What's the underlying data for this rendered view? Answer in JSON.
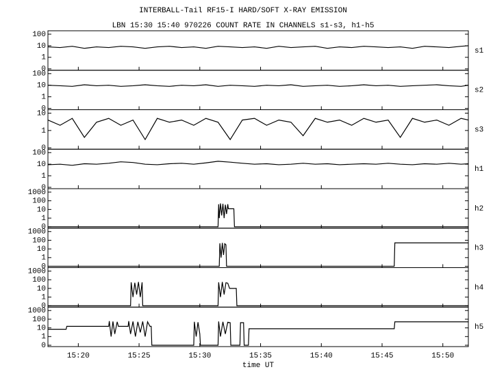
{
  "title": "INTERBALL-Tail RF15-I HARD/SOFT X-RAY EMISSION",
  "subtitle": "LBN 15:30 15:40 970226  COUNT RATE IN CHANNELS s1-s3, h1-h5",
  "chart_data": [
    {
      "type": "line",
      "label": "s1",
      "yscale": "log",
      "ylim": [
        0,
        100
      ],
      "yticks": [
        0,
        1,
        10,
        100
      ],
      "xlim": [
        17.5,
        52.1
      ],
      "color": "#000000",
      "x": [
        17.5,
        18.5,
        19.5,
        20.5,
        21.5,
        22.5,
        23.5,
        24.5,
        25.5,
        26.5,
        27.5,
        28.5,
        29.5,
        30.5,
        31.5,
        32.5,
        33.5,
        34.5,
        35.5,
        36.5,
        37.5,
        38.5,
        39.5,
        40.5,
        41.5,
        42.5,
        43.5,
        44.5,
        45.5,
        46.5,
        47.5,
        48.5,
        49.5,
        50.5,
        51.5,
        52.1
      ],
      "values": [
        8,
        7,
        9,
        6,
        8,
        7,
        9,
        8,
        6,
        8,
        9,
        7,
        8,
        6,
        9,
        8,
        7,
        8,
        6,
        9,
        7,
        8,
        9,
        6,
        8,
        7,
        9,
        8,
        7,
        8,
        6,
        9,
        8,
        7,
        9,
        10
      ]
    },
    {
      "type": "line",
      "label": "s2",
      "yscale": "log",
      "ylim": [
        0,
        100
      ],
      "yticks": [
        0,
        1,
        10,
        100
      ],
      "xlim": [
        17.5,
        52.1
      ],
      "color": "#000000",
      "x": [
        17.5,
        18.5,
        19.5,
        20.5,
        21.5,
        22.5,
        23.5,
        24.5,
        25.5,
        26.5,
        27.5,
        28.5,
        29.5,
        30.5,
        31.5,
        32.5,
        33.5,
        34.5,
        35.5,
        36.5,
        37.5,
        38.5,
        39.5,
        40.5,
        41.5,
        42.5,
        43.5,
        44.5,
        45.5,
        46.5,
        47.5,
        48.5,
        49.5,
        50.5,
        51.5,
        52.1
      ],
      "values": [
        10,
        9,
        8,
        11,
        9,
        10,
        8,
        9,
        11,
        9,
        8,
        10,
        9,
        11,
        8,
        10,
        9,
        8,
        10,
        9,
        11,
        8,
        9,
        10,
        8,
        9,
        11,
        9,
        10,
        8,
        9,
        10,
        11,
        9,
        8,
        10
      ]
    },
    {
      "type": "line",
      "label": "s3",
      "yscale": "log",
      "ylim": [
        0,
        10
      ],
      "yticks": [
        0,
        1,
        10
      ],
      "xlim": [
        17.5,
        52.1
      ],
      "color": "#000000",
      "x": [
        17.5,
        18.5,
        19.5,
        20.5,
        21.5,
        22.5,
        23.5,
        24.5,
        25.5,
        26.5,
        27.5,
        28.5,
        29.5,
        30.5,
        31.5,
        32.5,
        33.5,
        34.5,
        35.5,
        36.5,
        37.5,
        38.5,
        39.5,
        40.5,
        41.5,
        42.5,
        43.5,
        44.5,
        45.5,
        46.5,
        47.5,
        48.5,
        49.5,
        50.5,
        51.5,
        52.1
      ],
      "values": [
        4,
        2,
        5,
        0.4,
        3,
        5,
        2,
        4,
        0.3,
        5,
        3,
        4,
        2,
        5,
        3,
        0.3,
        4,
        5,
        2,
        4,
        3,
        0.5,
        5,
        3,
        4,
        2,
        5,
        3,
        4,
        0.4,
        5,
        3,
        4,
        2,
        5,
        4
      ]
    },
    {
      "type": "line",
      "label": "h1",
      "yscale": "log",
      "ylim": [
        0,
        100
      ],
      "yticks": [
        0,
        1,
        10,
        100
      ],
      "xlim": [
        17.5,
        52.1
      ],
      "color": "#000000",
      "x": [
        17.5,
        18.5,
        19.5,
        20.5,
        21.5,
        22.5,
        23.5,
        24.5,
        25.5,
        26.5,
        27.5,
        28.5,
        29.5,
        30.5,
        31.5,
        32.5,
        33.5,
        34.5,
        35.5,
        36.5,
        37.5,
        38.5,
        39.5,
        40.5,
        41.5,
        42.5,
        43.5,
        44.5,
        45.5,
        46.5,
        47.5,
        48.5,
        49.5,
        50.5,
        51.5,
        52.1
      ],
      "values": [
        9,
        10,
        8,
        11,
        10,
        12,
        16,
        14,
        10,
        9,
        11,
        12,
        10,
        13,
        18,
        15,
        12,
        10,
        11,
        9,
        10,
        12,
        10,
        11,
        9,
        10,
        11,
        10,
        12,
        10,
        9,
        11,
        10,
        12,
        10,
        11
      ]
    },
    {
      "type": "line",
      "label": "h2",
      "yscale": "log",
      "ylim": [
        0,
        1000
      ],
      "yticks": [
        0,
        1,
        10,
        100,
        1000
      ],
      "xlim": [
        17.5,
        52.1
      ],
      "color": "#000000",
      "x": [
        17.5,
        31.5,
        31.55,
        31.6,
        31.7,
        31.8,
        31.9,
        32.0,
        32.1,
        32.2,
        32.3,
        32.35,
        32.8,
        32.85,
        52.1
      ],
      "values": [
        0,
        0,
        40,
        1,
        50,
        2,
        45,
        1,
        35,
        3,
        40,
        12,
        12,
        0,
        0
      ]
    },
    {
      "type": "line",
      "label": "h3",
      "yscale": "log",
      "ylim": [
        0,
        1000
      ],
      "yticks": [
        0,
        1,
        10,
        100,
        1000
      ],
      "xlim": [
        17.5,
        52.1
      ],
      "color": "#000000",
      "x": [
        17.5,
        31.6,
        31.65,
        31.75,
        31.85,
        31.95,
        32.05,
        32.15,
        32.2,
        46,
        46.05,
        52.1
      ],
      "values": [
        0,
        0,
        45,
        1,
        50,
        2,
        40,
        30,
        0,
        0,
        50,
        50
      ]
    },
    {
      "type": "line",
      "label": "h4",
      "yscale": "log",
      "ylim": [
        0,
        1000
      ],
      "yticks": [
        0,
        1,
        10,
        100,
        1000
      ],
      "xlim": [
        17.5,
        52.1
      ],
      "color": "#000000",
      "x": [
        17.5,
        24.3,
        24.35,
        24.5,
        24.65,
        24.8,
        24.95,
        25.1,
        25.25,
        25.3,
        31.5,
        31.55,
        31.7,
        31.85,
        32.0,
        32.15,
        32.3,
        32.45,
        32.5,
        33.0,
        33.05,
        52.1
      ],
      "values": [
        0,
        0,
        50,
        1,
        45,
        2,
        55,
        1,
        50,
        0,
        0,
        50,
        1,
        55,
        2,
        45,
        40,
        10,
        10,
        10,
        0,
        0
      ]
    },
    {
      "type": "line",
      "label": "h5",
      "yscale": "log",
      "ylim": [
        0,
        1000
      ],
      "yticks": [
        0,
        1,
        10,
        100,
        1000
      ],
      "xlim": [
        17.5,
        52.1
      ],
      "color": "#000000",
      "x": [
        17.5,
        19,
        19.05,
        22.5,
        22.55,
        22.7,
        22.85,
        23,
        23.2,
        23.3,
        24.1,
        24.15,
        24.3,
        24.5,
        24.7,
        24.9,
        25.1,
        25.3,
        25.5,
        25.7,
        25.9,
        26,
        26.05,
        29.5,
        29.55,
        29.7,
        29.85,
        30,
        30.05,
        31.5,
        31.55,
        31.7,
        31.9,
        32.1,
        32.3,
        32.5,
        32.55,
        33.3,
        33.35,
        33.6,
        33.65,
        34,
        34.05,
        46,
        46.05,
        52.1
      ],
      "values": [
        7,
        7,
        15,
        15,
        60,
        1,
        55,
        2,
        50,
        15,
        15,
        60,
        2,
        55,
        1,
        50,
        3,
        55,
        1,
        50,
        15,
        15,
        0,
        0,
        50,
        1,
        45,
        2,
        0,
        0,
        55,
        1,
        50,
        2,
        45,
        40,
        0,
        0,
        40,
        40,
        0,
        0,
        8,
        8,
        50,
        50
      ],
      "xticks": [
        {
          "value": 20,
          "label": "15:20"
        },
        {
          "value": 25,
          "label": "15:25"
        },
        {
          "value": 30,
          "label": "15:30"
        },
        {
          "value": 35,
          "label": "15:35"
        },
        {
          "value": 40,
          "label": "15:40"
        },
        {
          "value": 45,
          "label": "15:45"
        },
        {
          "value": 50,
          "label": "15:50"
        }
      ],
      "xlabel": "time UT"
    }
  ]
}
